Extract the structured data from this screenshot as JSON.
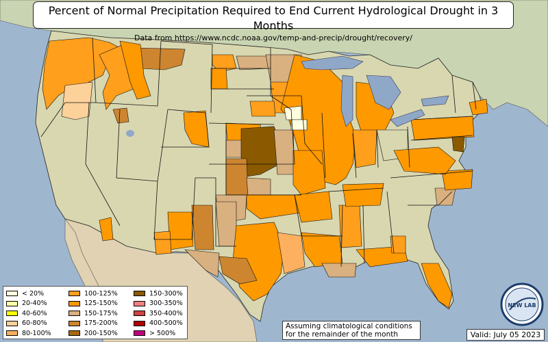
{
  "title": "Percent of Normal Precipitation Required to End Current Hydrological Drought in 3 Months",
  "subtitle": "Data from https://www.ncdc.noaa.gov/temp-and-precip/drought/recovery/",
  "legend": [
    {
      "label": "< 20%",
      "color": "#ffffe0"
    },
    {
      "label": "20-40%",
      "color": "#ffffa6"
    },
    {
      "label": "40-60%",
      "color": "#ffff00"
    },
    {
      "label": "60-80%",
      "color": "#fdd19a"
    },
    {
      "label": "80-100%",
      "color": "#fdb160"
    },
    {
      "label": "100-125%",
      "color": "#ff9f1c"
    },
    {
      "label": "125-150%",
      "color": "#ff9900"
    },
    {
      "label": "150-175%",
      "color": "#d9b07f"
    },
    {
      "label": "175-200%",
      "color": "#cd8530"
    },
    {
      "label": "200-150%",
      "color": "#a86a10"
    },
    {
      "label": "150-300%",
      "color": "#8b5a00"
    },
    {
      "label": "300-350%",
      "color": "#f08080"
    },
    {
      "label": "350-400%",
      "color": "#cc4444"
    },
    {
      "label": "400-500%",
      "color": "#b30000"
    },
    {
      "label": "> 500%",
      "color": "#c20080"
    }
  ],
  "note": {
    "line1": "Assuming climatological conditions",
    "line2": "for the remainder of the month"
  },
  "valid": "Valid: July 05 2023",
  "logo_text": "NEW LAB",
  "colors": {
    "ocean": "#9fb6cf",
    "land": "#d8d7b0",
    "canada": "#c9d4b2",
    "mexico": "#e0d2b2",
    "lakes": "#8fa8c8",
    "boundary": "#111111"
  }
}
